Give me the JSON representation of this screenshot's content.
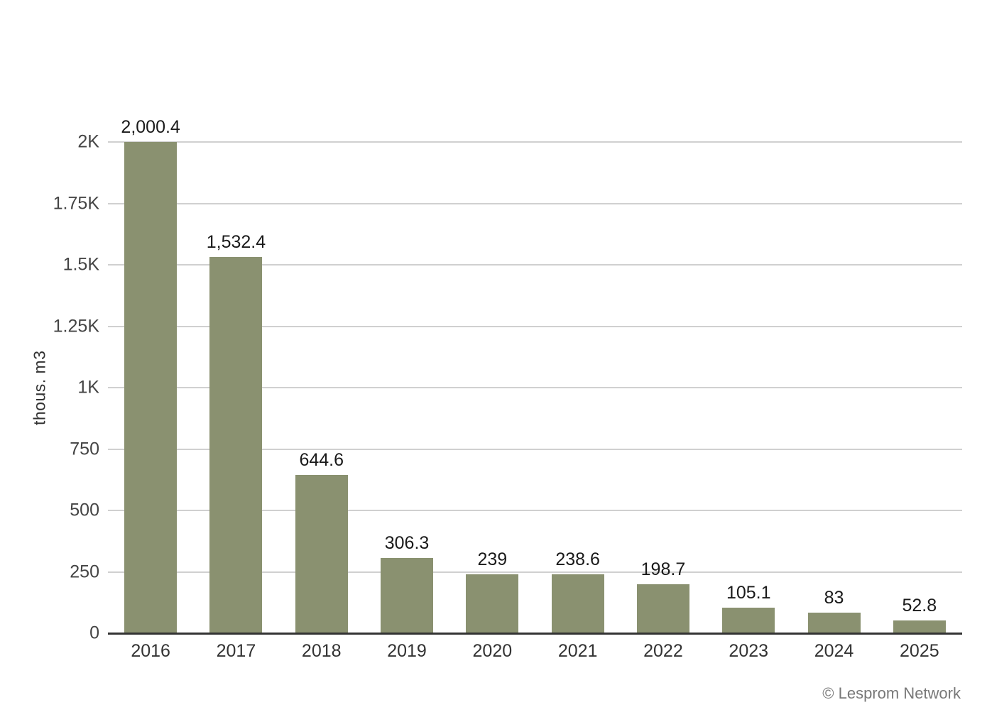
{
  "page": {
    "background": "#ffffff"
  },
  "chart_data": {
    "type": "bar",
    "title": "",
    "categories": [
      "2016",
      "2017",
      "2018",
      "2019",
      "2020",
      "2021",
      "2022",
      "2023",
      "2024",
      "2025"
    ],
    "values": [
      2000.4,
      1532.4,
      644.6,
      306.3,
      239,
      238.6,
      198.7,
      105.1,
      83,
      52.8
    ],
    "bar_labels": [
      "2,000.4",
      "1,532.4",
      "644.6",
      "306.3",
      "239",
      "238.6",
      "198.7",
      "105.1",
      "83",
      "52.8"
    ],
    "xlabel": "",
    "ylabel": "thous. m3",
    "ylim": [
      0,
      2000
    ],
    "y_ticks": [
      {
        "value": 0,
        "label": "0"
      },
      {
        "value": 250,
        "label": "250"
      },
      {
        "value": 500,
        "label": "500"
      },
      {
        "value": 750,
        "label": "750"
      },
      {
        "value": 1000,
        "label": "1K"
      },
      {
        "value": 1250,
        "label": "1.25K"
      },
      {
        "value": 1500,
        "label": "1.5K"
      },
      {
        "value": 1750,
        "label": "1.75K"
      },
      {
        "value": 2000,
        "label": "2K"
      }
    ],
    "grid": true,
    "legend": "none"
  },
  "colors": {
    "bar": "#8a9170",
    "gridline": "#d0d0d0",
    "axis_line": "#333333",
    "tick_text": "#444444",
    "bar_label_text": "#1a1a1a",
    "category_text": "#333333",
    "credit_text": "#787878"
  },
  "footer": {
    "credit": "© Lesprom Network"
  }
}
